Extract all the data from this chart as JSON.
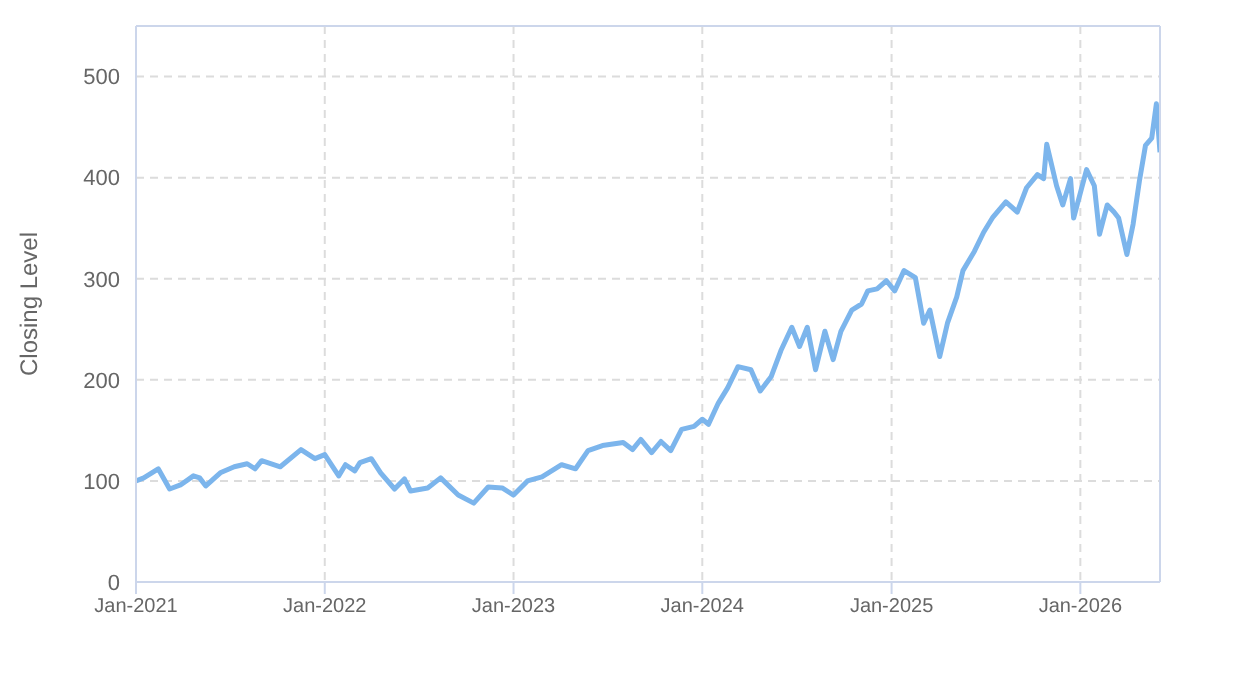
{
  "chart_data": {
    "type": "line",
    "ylabel": "Closing Level",
    "xlim": [
      "2021-01-01",
      "2026-06-04"
    ],
    "ylim": [
      0,
      550
    ],
    "yticks": [
      0,
      100,
      200,
      300,
      400,
      500
    ],
    "xticks": [
      {
        "value": "2021-01-01",
        "label": "Jan-2021"
      },
      {
        "value": "2022-01-01",
        "label": "Jan-2022"
      },
      {
        "value": "2023-01-01",
        "label": "Jan-2023"
      },
      {
        "value": "2024-01-01",
        "label": "Jan-2024"
      },
      {
        "value": "2025-01-01",
        "label": "Jan-2025"
      },
      {
        "value": "2026-01-01",
        "label": "Jan-2026"
      }
    ],
    "grid": true,
    "marker": "none",
    "line_style": "solid",
    "x": [
      "2021-01-01",
      "2021-01-16",
      "2021-02-13",
      "2021-03-07",
      "2021-03-28",
      "2021-04-22",
      "2021-05-04",
      "2021-05-16",
      "2021-06-13",
      "2021-07-10",
      "2021-08-04",
      "2021-08-19",
      "2021-09-01",
      "2021-10-07",
      "2021-11-16",
      "2021-12-13",
      "2022-01-01",
      "2022-01-28",
      "2022-02-10",
      "2022-02-28",
      "2022-03-10",
      "2022-04-01",
      "2022-04-19",
      "2022-05-16",
      "2022-06-04",
      "2022-06-16",
      "2022-07-19",
      "2022-08-13",
      "2022-09-16",
      "2022-10-16",
      "2022-11-13",
      "2022-12-10",
      "2023-01-01",
      "2023-01-28",
      "2023-02-25",
      "2023-04-04",
      "2023-05-01",
      "2023-05-25",
      "2023-06-22",
      "2023-08-01",
      "2023-08-19",
      "2023-09-04",
      "2023-09-25",
      "2023-10-13",
      "2023-11-01",
      "2023-11-22",
      "2023-12-16",
      "2024-01-01",
      "2024-01-13",
      "2024-02-01",
      "2024-02-19",
      "2024-03-10",
      "2024-04-04",
      "2024-04-22",
      "2024-05-13",
      "2024-06-01",
      "2024-06-22",
      "2024-07-07",
      "2024-07-22",
      "2024-08-07",
      "2024-08-25",
      "2024-09-10",
      "2024-09-25",
      "2024-10-16",
      "2024-11-04",
      "2024-11-16",
      "2024-12-04",
      "2024-12-22",
      "2025-01-07",
      "2025-01-25",
      "2025-02-16",
      "2025-03-04",
      "2025-03-16",
      "2025-04-04",
      "2025-04-19",
      "2025-05-07",
      "2025-05-19",
      "2025-06-10",
      "2025-06-28",
      "2025-07-16",
      "2025-08-10",
      "2025-09-01",
      "2025-09-19",
      "2025-10-10",
      "2025-10-22",
      "2025-10-28",
      "2025-11-16",
      "2025-11-28",
      "2025-12-13",
      "2025-12-19",
      "2026-01-13",
      "2026-01-28",
      "2026-02-07",
      "2026-02-22",
      "2026-03-07",
      "2026-03-16",
      "2026-04-01",
      "2026-04-13",
      "2026-04-25",
      "2026-05-07",
      "2026-05-19",
      "2026-05-28",
      "2026-06-04"
    ],
    "series": [
      {
        "color": "#7cb5ec",
        "values": [
          100,
          103,
          112,
          92,
          96,
          105,
          103,
          95,
          108,
          114,
          117,
          112,
          120,
          114,
          131,
          122,
          126,
          105,
          116,
          110,
          118,
          122,
          108,
          92,
          102,
          90,
          93,
          103,
          86,
          78,
          94,
          93,
          86,
          100,
          104,
          116,
          112,
          130,
          135,
          138,
          131,
          141,
          128,
          139,
          130,
          151,
          154,
          161,
          156,
          177,
          192,
          213,
          210,
          189,
          203,
          229,
          252,
          233,
          252,
          210,
          248,
          220,
          248,
          269,
          275,
          288,
          290,
          298,
          288,
          308,
          301,
          256,
          269,
          223,
          256,
          282,
          308,
          327,
          346,
          361,
          376,
          366,
          390,
          403,
          399,
          433,
          392,
          373,
          399,
          360,
          408,
          392,
          344,
          373,
          366,
          360,
          324,
          354,
          396,
          432,
          439,
          473,
          425
        ]
      }
    ]
  }
}
